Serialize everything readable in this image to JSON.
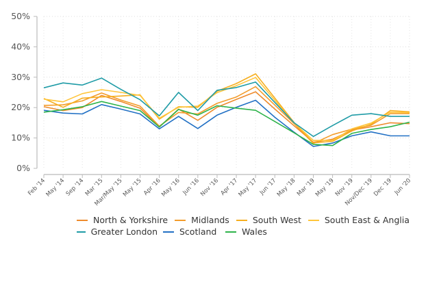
{
  "chart_data": {
    "type": "line",
    "title": "",
    "xlabel": "",
    "ylabel": "",
    "ylim": [
      0,
      50
    ],
    "yticks": [
      "0%",
      "10%",
      "20%",
      "30%",
      "40%",
      "50%"
    ],
    "ytick_values": [
      0,
      10,
      20,
      30,
      40,
      50
    ],
    "grid": true,
    "legend_position": "bottom",
    "categories": [
      "Feb '14",
      "May '14",
      "Sep '14",
      "Mar '15",
      "Mar/May '15",
      "May '15",
      "Apr '16",
      "May '16",
      "Jun '16",
      "Nov '16",
      "Apr '17",
      "May '17",
      "Jun '17",
      "May '18",
      "Mar '19",
      "May '19",
      "Nov '19",
      "Nov/Dec '19",
      "Dec '19",
      "Jun '20"
    ],
    "series": [
      {
        "name": "North & Yorkshire",
        "color": "#EE8B2C",
        "values": [
          20.3,
          19.0,
          20.0,
          24.0,
          22.0,
          19.8,
          13.6,
          19.5,
          15.8,
          20.1,
          22.7,
          25.2,
          19.5,
          14.0,
          8.6,
          9.6,
          12.6,
          13.7,
          15.0,
          14.7
        ]
      },
      {
        "name": "Midlands",
        "color": "#F39C2A",
        "values": [
          20.7,
          20.9,
          22.2,
          24.8,
          22.5,
          20.5,
          13.9,
          18.4,
          17.9,
          21.4,
          23.5,
          26.9,
          20.8,
          14.7,
          8.2,
          11.1,
          12.9,
          14.2,
          18.0,
          18.0
        ]
      },
      {
        "name": "South West",
        "color": "#F6AE1E",
        "values": [
          23.0,
          20.1,
          23.1,
          23.5,
          23.8,
          24.2,
          16.2,
          20.3,
          20.1,
          25.4,
          27.9,
          31.1,
          23.1,
          15.1,
          8.4,
          8.9,
          12.3,
          14.5,
          19.0,
          18.6
        ]
      },
      {
        "name": "South East & Anglia",
        "color": "#FFC53A",
        "values": [
          22.8,
          21.9,
          24.6,
          25.9,
          25.0,
          24.0,
          16.5,
          20.1,
          20.5,
          24.9,
          27.2,
          29.9,
          22.4,
          14.9,
          9.2,
          9.2,
          13.0,
          14.9,
          18.5,
          18.3
        ]
      },
      {
        "name": "Greater London",
        "color": "#1E9BA6",
        "values": [
          26.5,
          28.1,
          27.4,
          29.7,
          26.0,
          22.6,
          17.3,
          25.0,
          19.0,
          25.7,
          26.6,
          28.4,
          21.7,
          15.0,
          10.5,
          14.1,
          17.5,
          18.0,
          17.1,
          17.1
        ]
      },
      {
        "name": "Scotland",
        "color": "#2170C4",
        "values": [
          19.1,
          18.2,
          17.9,
          21.0,
          19.5,
          17.9,
          13.0,
          17.1,
          13.1,
          17.5,
          20.1,
          22.4,
          16.8,
          11.9,
          7.2,
          8.3,
          10.7,
          12.0,
          10.7,
          10.7
        ]
      },
      {
        "name": "Wales",
        "color": "#2DB34A",
        "values": [
          18.5,
          19.3,
          20.3,
          22.0,
          20.5,
          19.0,
          13.6,
          19.4,
          17.5,
          20.6,
          19.8,
          19.1,
          15.4,
          11.7,
          7.9,
          7.5,
          11.5,
          12.8,
          13.7,
          15.2
        ]
      }
    ]
  }
}
